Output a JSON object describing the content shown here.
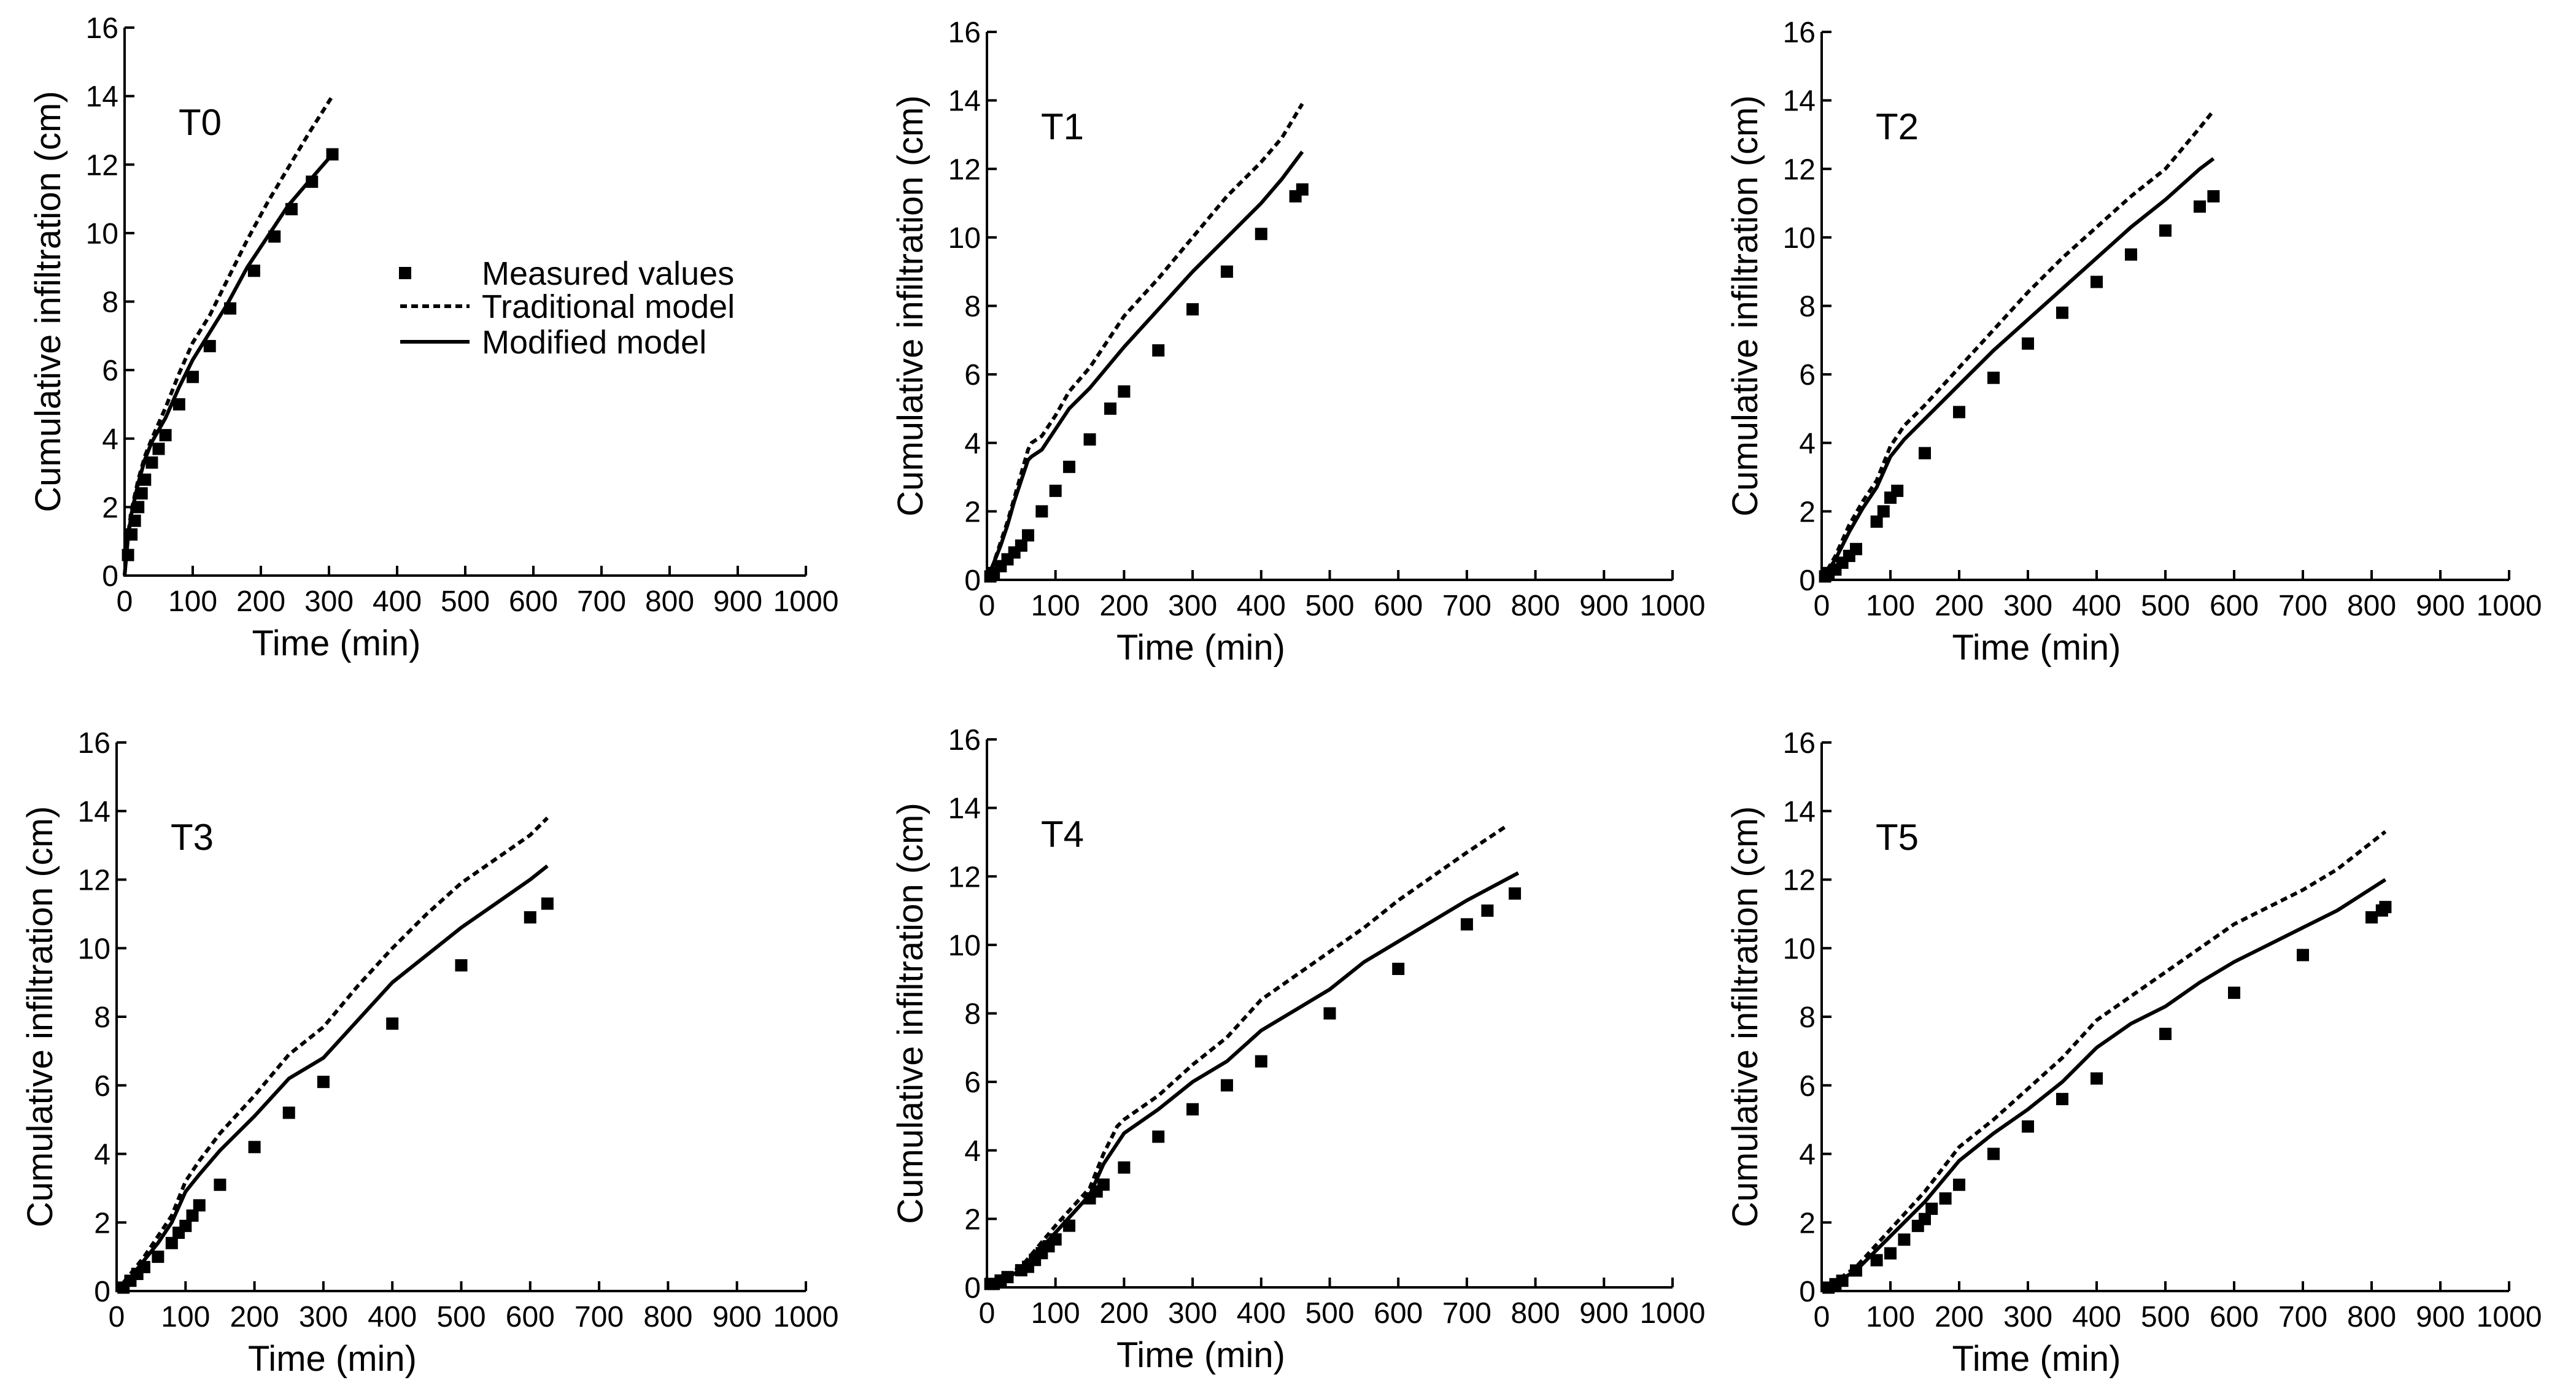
{
  "legend": {
    "measured": "Measured values",
    "traditional": "Traditional model",
    "modified": "Modified model"
  },
  "chart_data": [
    {
      "type": "scatter+line",
      "panel_label": "T0",
      "xlabel": "Time (min)",
      "ylabel": "Cumulative infiltration (cm)",
      "xlim": [
        0,
        1000
      ],
      "ylim": [
        0,
        16
      ],
      "xticks": [
        0,
        100,
        200,
        300,
        400,
        500,
        600,
        700,
        800,
        900,
        1000
      ],
      "yticks": [
        0,
        2,
        4,
        6,
        8,
        10,
        12,
        14,
        16
      ],
      "series": [
        {
          "name": "Measured values",
          "kind": "markers",
          "x": [
            5,
            10,
            15,
            20,
            25,
            30,
            40,
            50,
            60,
            80,
            100,
            125,
            155,
            190,
            220,
            245,
            275,
            305
          ],
          "y": [
            0.6,
            1.2,
            1.6,
            2.0,
            2.4,
            2.8,
            3.3,
            3.7,
            4.1,
            5.0,
            5.8,
            6.7,
            7.8,
            8.9,
            9.9,
            10.7,
            11.5,
            12.3
          ]
        },
        {
          "name": "Traditional model",
          "kind": "dashed",
          "x": [
            0,
            5,
            10,
            20,
            30,
            40,
            60,
            80,
            100,
            125,
            150,
            180,
            210,
            240,
            270,
            305
          ],
          "y": [
            0,
            1.2,
            1.9,
            2.8,
            3.5,
            4.0,
            4.9,
            5.9,
            6.8,
            7.6,
            8.6,
            9.8,
            10.9,
            11.9,
            12.9,
            14.0
          ]
        },
        {
          "name": "Modified model",
          "kind": "solid",
          "x": [
            0,
            5,
            10,
            20,
            30,
            40,
            60,
            80,
            100,
            125,
            150,
            180,
            210,
            240,
            270,
            305
          ],
          "y": [
            0,
            1.1,
            1.8,
            2.7,
            3.4,
            3.9,
            4.6,
            5.5,
            6.3,
            7.1,
            7.9,
            9.0,
            9.9,
            10.8,
            11.5,
            12.3
          ]
        }
      ]
    },
    {
      "type": "scatter+line",
      "panel_label": "T1",
      "xlabel": "Time (min)",
      "ylabel": "Cumulative infiltration (cm)",
      "xlim": [
        0,
        1000
      ],
      "ylim": [
        0,
        16
      ],
      "xticks": [
        0,
        100,
        200,
        300,
        400,
        500,
        600,
        700,
        800,
        900,
        1000
      ],
      "yticks": [
        0,
        2,
        4,
        6,
        8,
        10,
        12,
        14,
        16
      ],
      "series": [
        {
          "name": "Measured values",
          "kind": "markers",
          "x": [
            5,
            10,
            20,
            30,
            40,
            50,
            60,
            80,
            100,
            120,
            150,
            180,
            200,
            250,
            300,
            350,
            400,
            450,
            460
          ],
          "y": [
            0.1,
            0.2,
            0.4,
            0.6,
            0.8,
            1.0,
            1.3,
            2.0,
            2.6,
            3.3,
            4.1,
            5.0,
            5.5,
            6.7,
            7.9,
            9.0,
            10.1,
            11.2,
            11.4
          ]
        },
        {
          "name": "Traditional model",
          "kind": "dashed",
          "x": [
            0,
            10,
            20,
            30,
            40,
            50,
            60,
            65,
            80,
            100,
            120,
            150,
            200,
            250,
            300,
            350,
            400,
            430,
            460
          ],
          "y": [
            0,
            0.5,
            1.1,
            1.7,
            2.4,
            3.1,
            3.8,
            4.0,
            4.2,
            4.8,
            5.5,
            6.2,
            7.7,
            8.8,
            10.0,
            11.2,
            12.2,
            12.9,
            13.9
          ]
        },
        {
          "name": "Modified model",
          "kind": "solid",
          "x": [
            0,
            10,
            20,
            30,
            40,
            50,
            60,
            65,
            80,
            100,
            120,
            150,
            200,
            250,
            300,
            350,
            400,
            430,
            460
          ],
          "y": [
            0,
            0.5,
            1.0,
            1.6,
            2.3,
            2.9,
            3.5,
            3.6,
            3.8,
            4.4,
            5.0,
            5.6,
            6.8,
            7.9,
            9.0,
            10.0,
            11.0,
            11.7,
            12.5
          ]
        }
      ]
    },
    {
      "type": "scatter+line",
      "panel_label": "T2",
      "xlabel": "Time (min)",
      "ylabel": "Cumulative infiltration (cm)",
      "xlim": [
        0,
        1000
      ],
      "ylim": [
        0,
        16
      ],
      "xticks": [
        0,
        100,
        200,
        300,
        400,
        500,
        600,
        700,
        800,
        900,
        1000
      ],
      "yticks": [
        0,
        2,
        4,
        6,
        8,
        10,
        12,
        14,
        16
      ],
      "series": [
        {
          "name": "Measured values",
          "kind": "markers",
          "x": [
            5,
            10,
            20,
            30,
            40,
            50,
            80,
            90,
            100,
            110,
            150,
            200,
            250,
            300,
            350,
            400,
            450,
            500,
            550,
            570
          ],
          "y": [
            0.1,
            0.2,
            0.3,
            0.5,
            0.7,
            0.9,
            1.7,
            2.0,
            2.4,
            2.6,
            3.7,
            4.9,
            5.9,
            6.9,
            7.8,
            8.7,
            9.5,
            10.2,
            10.9,
            11.2
          ]
        },
        {
          "name": "Traditional model",
          "kind": "dashed",
          "x": [
            0,
            20,
            40,
            60,
            80,
            100,
            120,
            150,
            200,
            250,
            300,
            350,
            400,
            450,
            500,
            550,
            570
          ],
          "y": [
            0,
            0.7,
            1.6,
            2.3,
            2.9,
            3.9,
            4.5,
            5.1,
            6.2,
            7.3,
            8.4,
            9.4,
            10.3,
            11.2,
            12.0,
            13.2,
            13.7
          ]
        },
        {
          "name": "Modified model",
          "kind": "solid",
          "x": [
            0,
            20,
            40,
            60,
            80,
            100,
            120,
            150,
            200,
            250,
            300,
            350,
            400,
            450,
            500,
            550,
            570
          ],
          "y": [
            0,
            0.6,
            1.4,
            2.1,
            2.7,
            3.6,
            4.1,
            4.7,
            5.7,
            6.7,
            7.6,
            8.5,
            9.4,
            10.3,
            11.1,
            12.0,
            12.3
          ]
        }
      ]
    },
    {
      "type": "scatter+line",
      "panel_label": "T3",
      "xlabel": "Time (min)",
      "ylabel": "Cumulative infiltration (cm)",
      "xlim": [
        0,
        1000
      ],
      "ylim": [
        0,
        16
      ],
      "xticks": [
        0,
        100,
        200,
        300,
        400,
        500,
        600,
        700,
        800,
        900,
        1000
      ],
      "yticks": [
        0,
        2,
        4,
        6,
        8,
        10,
        12,
        14,
        16
      ],
      "series": [
        {
          "name": "Measured values",
          "kind": "markers",
          "x": [
            10,
            20,
            30,
            40,
            60,
            80,
            90,
            100,
            110,
            120,
            150,
            200,
            250,
            300,
            400,
            500,
            600,
            625
          ],
          "y": [
            0.1,
            0.3,
            0.5,
            0.7,
            1.0,
            1.4,
            1.7,
            1.9,
            2.2,
            2.5,
            3.1,
            4.2,
            5.2,
            6.1,
            7.8,
            9.5,
            10.9,
            11.3
          ]
        },
        {
          "name": "Traditional model",
          "kind": "dashed",
          "x": [
            0,
            20,
            40,
            60,
            80,
            100,
            120,
            150,
            200,
            250,
            300,
            350,
            400,
            450,
            500,
            550,
            600,
            625
          ],
          "y": [
            0,
            0.5,
            1.0,
            1.6,
            2.2,
            3.2,
            3.8,
            4.6,
            5.7,
            6.9,
            7.7,
            8.9,
            10.0,
            11.0,
            11.9,
            12.6,
            13.3,
            13.8
          ]
        },
        {
          "name": "Modified model",
          "kind": "solid",
          "x": [
            0,
            20,
            40,
            60,
            80,
            100,
            120,
            150,
            200,
            250,
            300,
            350,
            400,
            450,
            500,
            550,
            600,
            625
          ],
          "y": [
            0,
            0.4,
            0.9,
            1.4,
            2.0,
            2.9,
            3.4,
            4.1,
            5.1,
            6.2,
            6.8,
            7.9,
            9.0,
            9.8,
            10.6,
            11.3,
            12.0,
            12.4
          ]
        }
      ]
    },
    {
      "type": "scatter+line",
      "panel_label": "T4",
      "xlabel": "Time (min)",
      "ylabel": "Cumulative infiltration (cm)",
      "xlim": [
        0,
        1000
      ],
      "ylim": [
        0,
        16
      ],
      "xticks": [
        0,
        100,
        200,
        300,
        400,
        500,
        600,
        700,
        800,
        900,
        1000
      ],
      "yticks": [
        0,
        2,
        4,
        6,
        8,
        10,
        12,
        14,
        16
      ],
      "series": [
        {
          "name": "Measured values",
          "kind": "markers",
          "x": [
            5,
            10,
            20,
            30,
            50,
            60,
            70,
            80,
            90,
            100,
            120,
            150,
            160,
            170,
            200,
            250,
            300,
            350,
            400,
            500,
            600,
            700,
            730,
            770
          ],
          "y": [
            0.1,
            0.1,
            0.2,
            0.3,
            0.5,
            0.6,
            0.8,
            1.0,
            1.2,
            1.4,
            1.8,
            2.6,
            2.8,
            3.0,
            3.5,
            4.4,
            5.2,
            5.9,
            6.6,
            8.0,
            9.3,
            10.6,
            11.0,
            11.5
          ]
        },
        {
          "name": "Traditional model",
          "kind": "dashed",
          "x": [
            0,
            50,
            100,
            150,
            170,
            190,
            200,
            250,
            300,
            350,
            400,
            450,
            500,
            550,
            600,
            650,
            700,
            760
          ],
          "y": [
            0,
            0.6,
            1.8,
            2.9,
            3.9,
            4.7,
            4.9,
            5.6,
            6.5,
            7.3,
            8.4,
            9.1,
            9.8,
            10.5,
            11.3,
            12.0,
            12.7,
            13.5
          ]
        },
        {
          "name": "Modified model",
          "kind": "solid",
          "x": [
            0,
            50,
            100,
            150,
            170,
            190,
            200,
            250,
            300,
            350,
            400,
            450,
            500,
            550,
            600,
            650,
            700,
            775
          ],
          "y": [
            0,
            0.5,
            1.6,
            2.7,
            3.6,
            4.2,
            4.5,
            5.2,
            6.0,
            6.6,
            7.5,
            8.1,
            8.7,
            9.5,
            10.1,
            10.7,
            11.3,
            12.1
          ]
        }
      ]
    },
    {
      "type": "scatter+line",
      "panel_label": "T5",
      "xlabel": "Time (min)",
      "ylabel": "Cumulative infiltration (cm)",
      "xlim": [
        0,
        1000
      ],
      "ylim": [
        0,
        16
      ],
      "xticks": [
        0,
        100,
        200,
        300,
        400,
        500,
        600,
        700,
        800,
        900,
        1000
      ],
      "yticks": [
        0,
        2,
        4,
        6,
        8,
        10,
        12,
        14,
        16
      ],
      "series": [
        {
          "name": "Measured values",
          "kind": "markers",
          "x": [
            10,
            20,
            30,
            50,
            80,
            100,
            120,
            140,
            150,
            160,
            180,
            200,
            250,
            300,
            350,
            400,
            500,
            600,
            700,
            800,
            815,
            820
          ],
          "y": [
            0.1,
            0.2,
            0.3,
            0.6,
            0.9,
            1.1,
            1.5,
            1.9,
            2.1,
            2.4,
            2.7,
            3.1,
            4.0,
            4.8,
            5.6,
            6.2,
            7.5,
            8.7,
            9.8,
            10.9,
            11.1,
            11.2
          ]
        },
        {
          "name": "Traditional model",
          "kind": "dashed",
          "x": [
            0,
            50,
            100,
            150,
            200,
            250,
            300,
            350,
            400,
            450,
            500,
            550,
            600,
            650,
            700,
            750,
            820
          ],
          "y": [
            0,
            0.7,
            1.8,
            2.9,
            4.2,
            5.0,
            5.9,
            6.8,
            7.9,
            8.6,
            9.3,
            10.0,
            10.7,
            11.2,
            11.7,
            12.3,
            13.4
          ]
        },
        {
          "name": "Modified model",
          "kind": "solid",
          "x": [
            0,
            50,
            100,
            150,
            200,
            250,
            300,
            350,
            400,
            450,
            500,
            550,
            600,
            650,
            700,
            750,
            820
          ],
          "y": [
            0,
            0.6,
            1.6,
            2.6,
            3.8,
            4.6,
            5.3,
            6.1,
            7.1,
            7.8,
            8.3,
            9.0,
            9.6,
            10.1,
            10.6,
            11.1,
            12.0
          ]
        }
      ]
    }
  ]
}
